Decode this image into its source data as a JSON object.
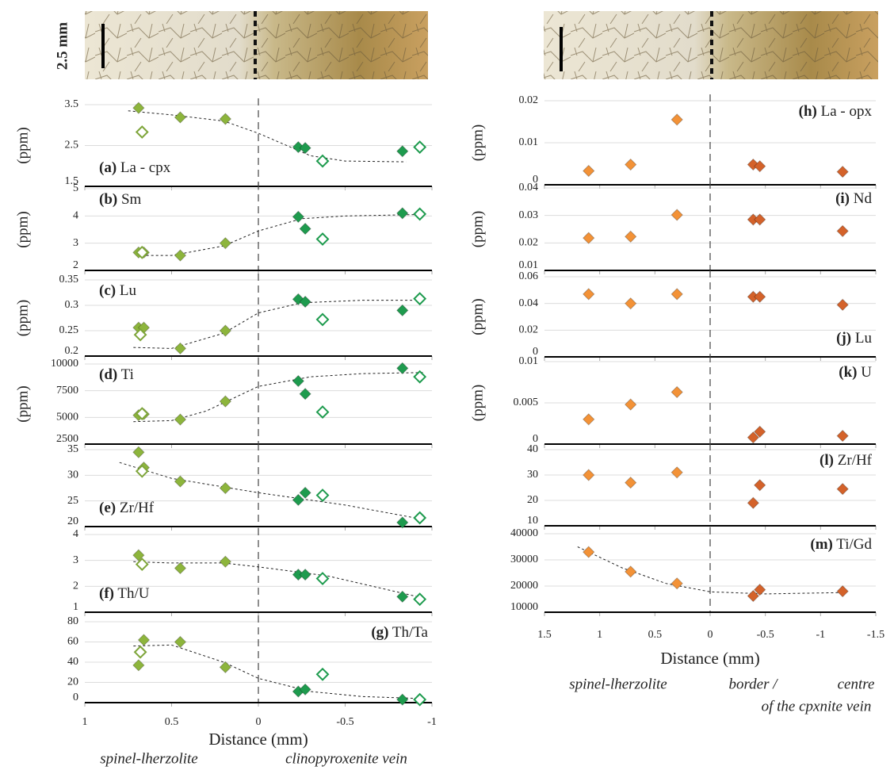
{
  "scale_label": "2.5 mm",
  "chart_data": [
    {
      "type": "scatter",
      "tag": "(a)",
      "title": "La - cpx",
      "label_corner": "bottom-left",
      "ylabel": "(ppm)",
      "xlim": [
        1,
        -1
      ],
      "xticks": [
        1,
        0.5,
        0,
        -0.5,
        -1
      ],
      "ylim": [
        1.5,
        3.5
      ],
      "yticks": [
        1.5,
        2.5,
        3.5
      ],
      "grid": true,
      "series": [
        {
          "color": "#8db53c",
          "marker": "filled",
          "x": [
            0.69,
            0.45,
            0.19
          ],
          "values": [
            3.42,
            3.19,
            3.15
          ]
        },
        {
          "color": "#7ea53a",
          "marker": "open",
          "x": [
            0.67
          ],
          "values": [
            2.83
          ]
        },
        {
          "color": "#1e9b4e",
          "marker": "filled",
          "x": [
            -0.23,
            -0.27,
            -0.83
          ],
          "values": [
            2.46,
            2.44,
            2.36
          ]
        },
        {
          "color": "#1e9b4e",
          "marker": "open",
          "x": [
            -0.37,
            -0.93
          ],
          "values": [
            2.12,
            2.46
          ]
        }
      ],
      "trend": {
        "x": [
          0.75,
          0.5,
          0.2,
          0,
          -0.3,
          -0.5,
          -0.85
        ],
        "values": [
          3.35,
          3.25,
          3.1,
          2.8,
          2.25,
          2.12,
          2.1
        ]
      }
    },
    {
      "type": "scatter",
      "tag": "(b)",
      "title": "Sm",
      "label_corner": "top-left",
      "ylabel": "(ppm)",
      "xlim": [
        1,
        -1
      ],
      "xticks": [
        1,
        0.5,
        0,
        -0.5,
        -1
      ],
      "ylim": [
        2,
        5
      ],
      "yticks": [
        2,
        3,
        4,
        5
      ],
      "grid": true,
      "series": [
        {
          "color": "#8db53c",
          "marker": "filled",
          "x": [
            0.69,
            0.66,
            0.45,
            0.19
          ],
          "values": [
            2.66,
            2.66,
            2.55,
            3.0
          ]
        },
        {
          "color": "#7ea53a",
          "marker": "open",
          "x": [
            0.67
          ],
          "values": [
            2.66
          ]
        },
        {
          "color": "#1e9b4e",
          "marker": "filled",
          "x": [
            -0.23,
            -0.27,
            -0.83
          ],
          "values": [
            3.97,
            3.53,
            4.1
          ]
        },
        {
          "color": "#1e9b4e",
          "marker": "open",
          "x": [
            -0.37,
            -0.93
          ],
          "values": [
            3.15,
            4.07
          ]
        }
      ],
      "trend": {
        "x": [
          0.7,
          0.5,
          0.2,
          0,
          -0.25,
          -0.5,
          -0.9
        ],
        "values": [
          2.55,
          2.55,
          2.9,
          3.45,
          3.9,
          4.0,
          4.05
        ]
      }
    },
    {
      "type": "scatter",
      "tag": "(c)",
      "title": "Lu",
      "label_corner": "top-left",
      "ylabel": "(ppm)",
      "xlim": [
        1,
        -1
      ],
      "xticks": [
        1,
        0.5,
        0,
        -0.5,
        -1
      ],
      "ylim": [
        0.2,
        0.35
      ],
      "yticks": [
        0.2,
        0.25,
        0.3,
        0.35
      ],
      "grid": true,
      "series": [
        {
          "color": "#8db53c",
          "marker": "filled",
          "x": [
            0.69,
            0.66,
            0.45,
            0.19
          ],
          "values": [
            0.256,
            0.256,
            0.215,
            0.25
          ]
        },
        {
          "color": "#7ea53a",
          "marker": "open",
          "x": [
            0.68
          ],
          "values": [
            0.242
          ]
        },
        {
          "color": "#1e9b4e",
          "marker": "filled",
          "x": [
            -0.23,
            -0.27,
            -0.83
          ],
          "values": [
            0.312,
            0.307,
            0.29
          ]
        },
        {
          "color": "#1e9b4e",
          "marker": "open",
          "x": [
            -0.37,
            -0.93
          ],
          "values": [
            0.272,
            0.313
          ]
        }
      ],
      "trend": {
        "x": [
          0.72,
          0.5,
          0.2,
          0,
          -0.25,
          -0.6,
          -0.9
        ],
        "values": [
          0.217,
          0.215,
          0.245,
          0.285,
          0.305,
          0.31,
          0.31
        ]
      }
    },
    {
      "type": "scatter",
      "tag": "(d)",
      "title": "Ti",
      "label_corner": "top-left",
      "ylabel": "(ppm)",
      "xlim": [
        1,
        -1
      ],
      "xticks": [
        1,
        0.5,
        0,
        -0.5,
        -1
      ],
      "ylim": [
        2500,
        10000
      ],
      "yticks": [
        2500,
        5000,
        7500,
        10000
      ],
      "grid": true,
      "series": [
        {
          "color": "#8db53c",
          "marker": "filled",
          "x": [
            0.69,
            0.66,
            0.45,
            0.19
          ],
          "values": [
            5200,
            5300,
            4800,
            6500
          ]
        },
        {
          "color": "#7ea53a",
          "marker": "open",
          "x": [
            0.67
          ],
          "values": [
            5350
          ]
        },
        {
          "color": "#1e9b4e",
          "marker": "filled",
          "x": [
            -0.23,
            -0.27,
            -0.83
          ],
          "values": [
            8400,
            7200,
            9600
          ]
        },
        {
          "color": "#1e9b4e",
          "marker": "open",
          "x": [
            -0.37,
            -0.93
          ],
          "values": [
            5500,
            8800
          ]
        }
      ],
      "trend": {
        "x": [
          0.72,
          0.5,
          0.3,
          0,
          -0.3,
          -0.6,
          -0.95
        ],
        "values": [
          4600,
          4700,
          5600,
          7900,
          8800,
          9100,
          9200
        ]
      }
    },
    {
      "type": "scatter",
      "tag": "(e)",
      "title": "Zr/Hf",
      "label_corner": "bottom-left",
      "xlim": [
        1,
        -1
      ],
      "xticks": [
        1,
        0.5,
        0,
        -0.5,
        -1
      ],
      "ylim": [
        20,
        35
      ],
      "yticks": [
        20,
        25,
        30,
        35
      ],
      "grid": true,
      "series": [
        {
          "color": "#8db53c",
          "marker": "filled",
          "x": [
            0.69,
            0.66,
            0.45,
            0.19
          ],
          "values": [
            34.5,
            31.5,
            28.8,
            27.5
          ]
        },
        {
          "color": "#7ea53a",
          "marker": "open",
          "x": [
            0.67
          ],
          "values": [
            30.8
          ]
        },
        {
          "color": "#1e9b4e",
          "marker": "filled",
          "x": [
            -0.23,
            -0.27,
            -0.83
          ],
          "values": [
            25.2,
            26.6,
            20.8
          ]
        },
        {
          "color": "#1e9b4e",
          "marker": "open",
          "x": [
            -0.37,
            -0.93
          ],
          "values": [
            26.1,
            21.7
          ]
        }
      ],
      "trend": {
        "x": [
          0.8,
          0.5,
          0,
          -0.5,
          -0.95
        ],
        "values": [
          32.5,
          29.4,
          26.6,
          24.2,
          21.4
        ]
      }
    },
    {
      "type": "scatter",
      "tag": "(f)",
      "title": "Th/U",
      "label_corner": "bottom-left",
      "xlim": [
        1,
        -1
      ],
      "xticks": [
        1,
        0.5,
        0,
        -0.5,
        -1
      ],
      "ylim": [
        1,
        4
      ],
      "yticks": [
        1,
        2,
        3,
        4
      ],
      "grid": true,
      "series": [
        {
          "color": "#8db53c",
          "marker": "filled",
          "x": [
            0.69,
            0.45,
            0.19
          ],
          "values": [
            3.2,
            2.7,
            2.95
          ]
        },
        {
          "color": "#7ea53a",
          "marker": "open",
          "x": [
            0.67
          ],
          "values": [
            2.85
          ]
        },
        {
          "color": "#1e9b4e",
          "marker": "filled",
          "x": [
            -0.23,
            -0.27,
            -0.83
          ],
          "values": [
            2.45,
            2.45,
            1.6
          ]
        },
        {
          "color": "#1e9b4e",
          "marker": "open",
          "x": [
            -0.37,
            -0.93
          ],
          "values": [
            2.3,
            1.5
          ]
        }
      ],
      "trend": {
        "x": [
          0.72,
          0.5,
          0.2,
          0,
          -0.4,
          -0.95
        ],
        "values": [
          2.95,
          2.9,
          2.9,
          2.75,
          2.4,
          1.55
        ]
      }
    },
    {
      "type": "scatter",
      "tag": "(g)",
      "title": "Th/Ta",
      "label_corner": "top-right",
      "xlim": [
        1,
        -1
      ],
      "xticks": [
        1,
        0.5,
        0,
        -0.5,
        -1
      ],
      "ylim": [
        0,
        80
      ],
      "yticks": [
        0,
        20,
        40,
        60,
        80
      ],
      "grid": true,
      "xlabel": "Distance (mm)",
      "captions": [
        "spinel-lherzolite",
        "clinopyroxenite vein"
      ],
      "series": [
        {
          "color": "#8db53c",
          "marker": "filled",
          "x": [
            0.69,
            0.66,
            0.45,
            0.19
          ],
          "values": [
            37,
            62,
            60,
            35
          ]
        },
        {
          "color": "#7ea53a",
          "marker": "open",
          "x": [
            0.68
          ],
          "values": [
            50
          ]
        },
        {
          "color": "#1e9b4e",
          "marker": "filled",
          "x": [
            -0.23,
            -0.27,
            -0.83
          ],
          "values": [
            11,
            13,
            3
          ]
        },
        {
          "color": "#1e9b4e",
          "marker": "open",
          "x": [
            -0.37,
            -0.93
          ],
          "values": [
            28,
            3
          ]
        }
      ],
      "trend": {
        "x": [
          0.72,
          0.5,
          0.2,
          0,
          -0.3,
          -0.6,
          -0.95
        ],
        "values": [
          56,
          57,
          40,
          24,
          11,
          6,
          4
        ]
      }
    },
    {
      "type": "scatter",
      "tag": "(h)",
      "title": "La - opx",
      "label_corner": "top-right",
      "ylabel": "(ppm)",
      "xlim": [
        1.5,
        -1.5
      ],
      "xticks": [
        1.5,
        1,
        0.5,
        0,
        -0.5,
        -1,
        -1.5
      ],
      "ylim": [
        0,
        0.02
      ],
      "yticks": [
        0,
        0.01,
        0.02
      ],
      "grid": true,
      "series": [
        {
          "color": "#f39237",
          "marker": "filled",
          "x": [
            1.1,
            0.72,
            0.3
          ],
          "values": [
            0.0033,
            0.0048,
            0.0155
          ]
        },
        {
          "color": "#d4622a",
          "marker": "filled",
          "x": [
            -0.39,
            -0.45,
            -1.2
          ],
          "values": [
            0.0048,
            0.0044,
            0.0031
          ]
        }
      ]
    },
    {
      "type": "scatter",
      "tag": "(i)",
      "title": "Nd",
      "label_corner": "top-right",
      "ylabel": "(ppm)",
      "xlim": [
        1.5,
        -1.5
      ],
      "xticks": [
        1.5,
        1,
        0.5,
        0,
        -0.5,
        -1,
        -1.5
      ],
      "ylim": [
        0.01,
        0.04
      ],
      "yticks": [
        0.01,
        0.02,
        0.03,
        0.04
      ],
      "grid": true,
      "series": [
        {
          "color": "#f39237",
          "marker": "filled",
          "x": [
            1.1,
            0.72,
            0.3
          ],
          "values": [
            0.0218,
            0.0223,
            0.0302
          ]
        },
        {
          "color": "#d4622a",
          "marker": "filled",
          "x": [
            -0.39,
            -0.45,
            -1.2
          ],
          "values": [
            0.0285,
            0.0285,
            0.0243
          ]
        }
      ]
    },
    {
      "type": "scatter",
      "tag": "(j)",
      "title": "Lu",
      "label_corner": "bottom-right",
      "ylabel": "(ppm)",
      "xlim": [
        1.5,
        -1.5
      ],
      "xticks": [
        1.5,
        1,
        0.5,
        0,
        -0.5,
        -1,
        -1.5
      ],
      "ylim": [
        0,
        0.06
      ],
      "yticks": [
        0,
        0.02,
        0.04,
        0.06
      ],
      "grid": true,
      "series": [
        {
          "color": "#f39237",
          "marker": "filled",
          "x": [
            1.1,
            0.72,
            0.3
          ],
          "values": [
            0.047,
            0.04,
            0.047
          ]
        },
        {
          "color": "#d4622a",
          "marker": "filled",
          "x": [
            -0.39,
            -0.45,
            -1.2
          ],
          "values": [
            0.045,
            0.045,
            0.039
          ]
        }
      ]
    },
    {
      "type": "scatter",
      "tag": "(k)",
      "title": "U",
      "label_corner": "top-right",
      "ylabel": "(ppm)",
      "xlim": [
        1.5,
        -1.5
      ],
      "xticks": [
        1.5,
        1,
        0.5,
        0,
        -0.5,
        -1,
        -1.5
      ],
      "ylim": [
        0,
        0.01
      ],
      "yticks": [
        0,
        0.005,
        0.01
      ],
      "grid": true,
      "series": [
        {
          "color": "#f39237",
          "marker": "filled",
          "x": [
            1.1,
            0.72,
            0.3
          ],
          "values": [
            0.003,
            0.0048,
            0.0063
          ]
        },
        {
          "color": "#d4622a",
          "marker": "filled",
          "x": [
            -0.39,
            -0.45,
            -1.2
          ],
          "values": [
            0.0008,
            0.0015,
            0.001
          ]
        }
      ]
    },
    {
      "type": "scatter",
      "tag": "(l)",
      "title": "Zr/Hf",
      "label_corner": "top-right",
      "xlim": [
        1.5,
        -1.5
      ],
      "xticks": [
        1.5,
        1,
        0.5,
        0,
        -0.5,
        -1,
        -1.5
      ],
      "ylim": [
        10,
        40
      ],
      "yticks": [
        10,
        20,
        30,
        40
      ],
      "grid": true,
      "series": [
        {
          "color": "#f39237",
          "marker": "filled",
          "x": [
            1.1,
            0.72,
            0.3
          ],
          "values": [
            30,
            27,
            31
          ]
        },
        {
          "color": "#d4622a",
          "marker": "filled",
          "x": [
            -0.39,
            -0.45,
            -1.2
          ],
          "values": [
            19,
            26,
            24.5
          ]
        }
      ]
    },
    {
      "type": "scatter",
      "tag": "(m)",
      "title": "Ti/Gd",
      "label_corner": "top-right",
      "xlim": [
        1.5,
        -1.5
      ],
      "xticks": [
        1.5,
        1,
        0.5,
        0,
        -0.5,
        -1,
        -1.5
      ],
      "ylim": [
        10000,
        40000
      ],
      "yticks": [
        10000,
        20000,
        30000,
        40000
      ],
      "grid": true,
      "xlabel": "Distance (mm)",
      "captions": [
        "spinel-lherzolite",
        "border /",
        "centre",
        "of the cpxnite vein"
      ],
      "series": [
        {
          "color": "#f39237",
          "marker": "filled",
          "x": [
            1.1,
            0.72,
            0.3
          ],
          "values": [
            33000,
            25500,
            21000
          ]
        },
        {
          "color": "#d4622a",
          "marker": "filled",
          "x": [
            -0.39,
            -0.45,
            -1.2
          ],
          "values": [
            16200,
            18600,
            18000
          ]
        }
      ],
      "trend": {
        "x": [
          1.2,
          0.8,
          0.4,
          0,
          -0.5,
          -1.2
        ],
        "values": [
          35000,
          27000,
          21000,
          17800,
          17000,
          17500
        ]
      }
    }
  ]
}
